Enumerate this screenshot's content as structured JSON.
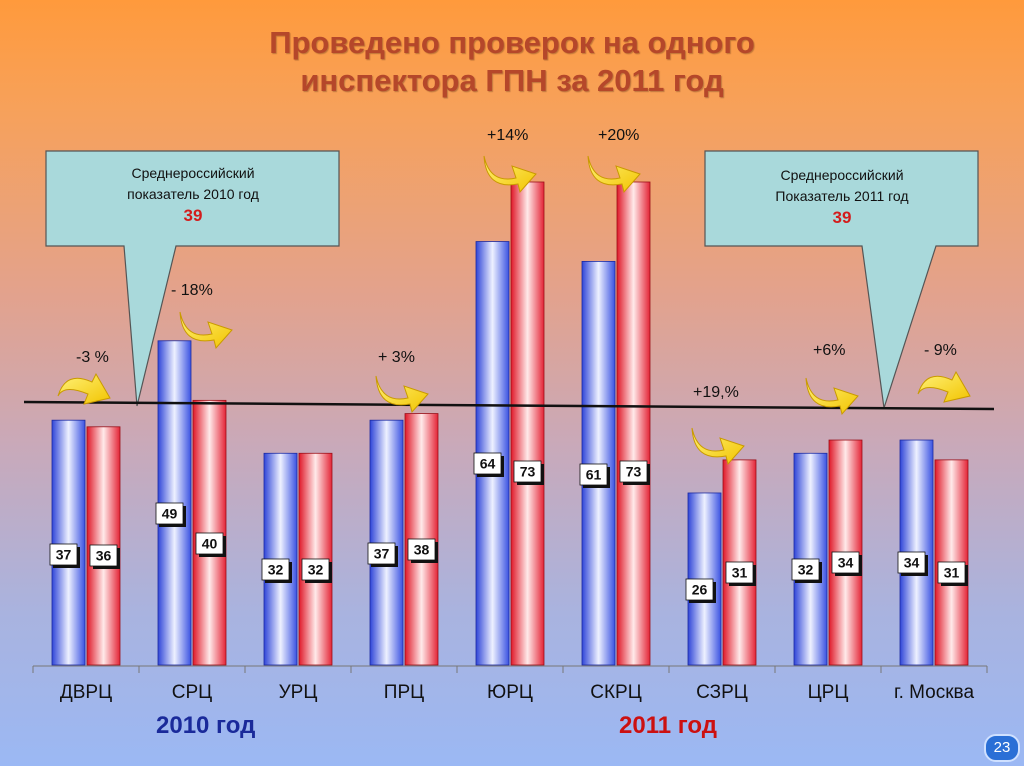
{
  "title_line1": "Проведено проверок на одного",
  "title_line2": "инспектора ГПН за 2011 год",
  "callout_left": {
    "line1": "Среднероссийский",
    "line2": "показатель 2010 год",
    "value": "39"
  },
  "callout_right": {
    "line1": "Среднероссийский",
    "line2": "Показатель 2011 год",
    "value": "39"
  },
  "changes": [
    "-3 %",
    "-  18%",
    "",
    "+ 3%",
    "+14%",
    "+20%",
    "+19,%",
    "+6%",
    "- 9%"
  ],
  "year_2010_label": "2010 год",
  "year_2011_label": "2011 год",
  "page_number": "23",
  "colors": {
    "series_2010": "#3d55e6",
    "series_2011": "#e6263a",
    "title": "#b5472a",
    "year_2010": "#1a2a9a",
    "year_2011": "#cc1010"
  },
  "chart_data": {
    "type": "bar",
    "categories": [
      "ДВРЦ",
      "СРЦ",
      "УРЦ",
      "ПРЦ",
      "ЮРЦ",
      "СКРЦ",
      "СЗРЦ",
      "ЦРЦ",
      "г. Москва"
    ],
    "series": [
      {
        "name": "2010 год",
        "values": [
          37,
          49,
          32,
          37,
          64,
          61,
          26,
          32,
          34
        ]
      },
      {
        "name": "2011 год",
        "values": [
          36,
          40,
          32,
          38,
          73,
          73,
          31,
          34,
          31
        ]
      }
    ],
    "reference_line": 39,
    "ylim": [
      0,
      80
    ]
  }
}
